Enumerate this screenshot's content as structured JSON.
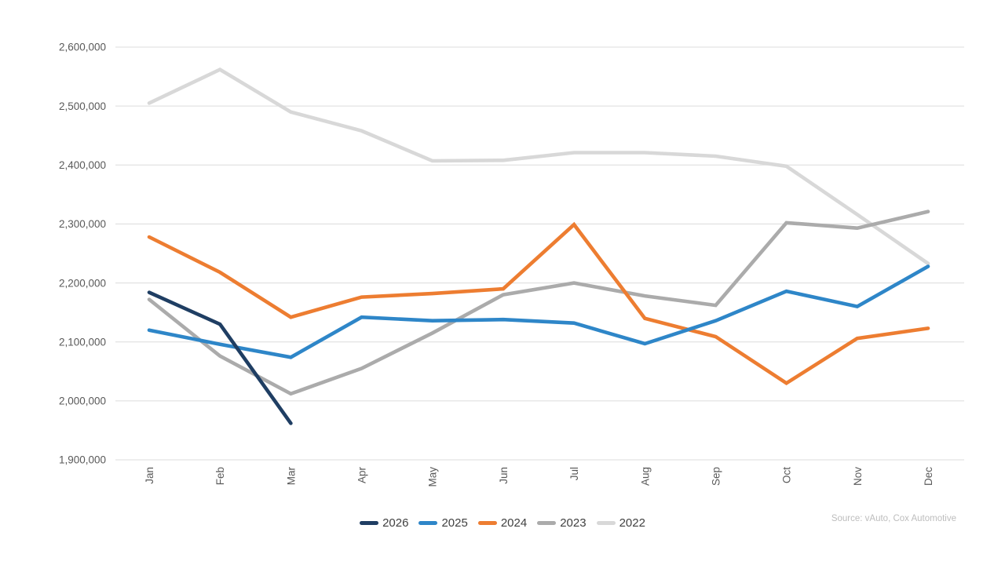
{
  "chart_data": {
    "type": "line",
    "title": "",
    "xlabel": "",
    "ylabel": "",
    "categories": [
      "Jan",
      "Feb",
      "Mar",
      "Apr",
      "May",
      "Jun",
      "Jul",
      "Aug",
      "Sep",
      "Oct",
      "Nov",
      "Dec"
    ],
    "series": [
      {
        "name": "2026",
        "color": "#1F3E63",
        "values": [
          2184000,
          2130000,
          1962000,
          null,
          null,
          null,
          null,
          null,
          null,
          null,
          null,
          null
        ]
      },
      {
        "name": "2025",
        "color": "#2E86C8",
        "values": [
          2120000,
          2096000,
          2074000,
          2142000,
          2136000,
          2138000,
          2132000,
          2097000,
          2136000,
          2186000,
          2160000,
          2228000
        ]
      },
      {
        "name": "2024",
        "color": "#ED7D31",
        "values": [
          2278000,
          2218000,
          2142000,
          2176000,
          2182000,
          2190000,
          2299000,
          2140000,
          2109000,
          2030000,
          2106000,
          2123000
        ]
      },
      {
        "name": "2023",
        "color": "#ABABAB",
        "values": [
          2172000,
          2076000,
          2012000,
          2055000,
          2115000,
          2180000,
          2200000,
          2178000,
          2162000,
          2302000,
          2293000,
          2321000
        ]
      },
      {
        "name": "2022",
        "color": "#D8D8D8",
        "values": [
          2505000,
          2562000,
          2490000,
          2458000,
          2407000,
          2408000,
          2421000,
          2421000,
          2415000,
          2398000,
          2316000,
          2233000
        ]
      }
    ],
    "ylim": [
      1900000,
      2600000
    ],
    "ytick_step": 100000,
    "ytick_labels": [
      "1,900,000",
      "2,000,000",
      "2,100,000",
      "2,200,000",
      "2,300,000",
      "2,400,000",
      "2,500,000",
      "2,600,000"
    ],
    "grid": "horizontal",
    "legend_position": "bottom-center"
  },
  "source_note": "Source: vAuto, Cox Automotive",
  "colors": {
    "gridline": "#DCDCDC",
    "axis_label": "#595959",
    "legend_text": "#404040",
    "source_text": "#BDBDBD",
    "background": "#FFFFFF"
  }
}
